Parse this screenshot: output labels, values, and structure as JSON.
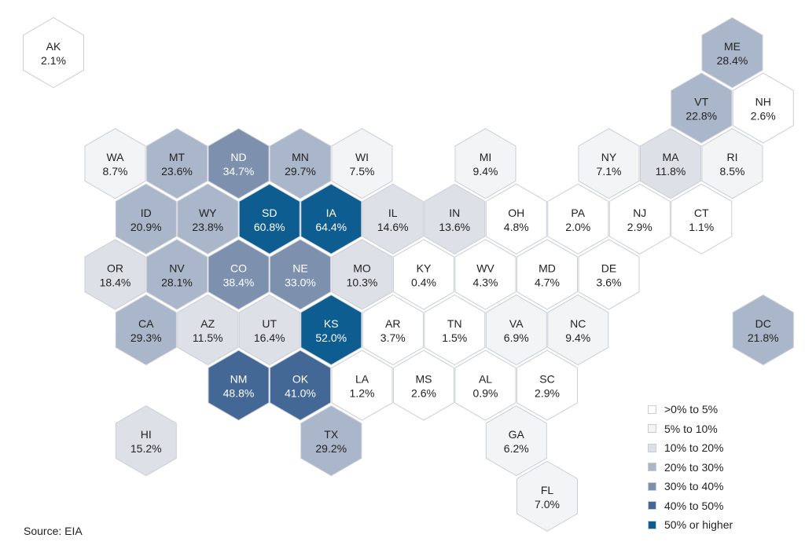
{
  "colors": {
    "0": "#ffffff",
    "1": "#f3f4f6",
    "2": "#dde1e7",
    "3": "#aab6c9",
    "4": "#7d91af",
    "5": "#446896",
    "6": "#0e5d90"
  },
  "legend": [
    {
      "label": ">0% to 5%",
      "bin": 0
    },
    {
      "label": "5% to 10%",
      "bin": 1
    },
    {
      "label": "10% to 20%",
      "bin": 2
    },
    {
      "label": "20% to 30%",
      "bin": 3
    },
    {
      "label": "30% to 40%",
      "bin": 4
    },
    {
      "label": "40% to 50%",
      "bin": 5
    },
    {
      "label": "50% or higher",
      "bin": 6
    }
  ],
  "source": "Source: EIA",
  "states": [
    {
      "abbr": "AK",
      "value": "2.1%",
      "bin": 0,
      "row": 0,
      "col": 0
    },
    {
      "abbr": "ME",
      "value": "28.4%",
      "bin": 3,
      "row": 0,
      "col": 11
    },
    {
      "abbr": "VT",
      "value": "22.8%",
      "bin": 3,
      "row": 1,
      "col": 10
    },
    {
      "abbr": "NH",
      "value": "2.6%",
      "bin": 0,
      "row": 1,
      "col": 11
    },
    {
      "abbr": "WA",
      "value": "8.7%",
      "bin": 1,
      "row": 2,
      "col": 1
    },
    {
      "abbr": "MT",
      "value": "23.6%",
      "bin": 3,
      "row": 2,
      "col": 2
    },
    {
      "abbr": "ND",
      "value": "34.7%",
      "bin": 4,
      "row": 2,
      "col": 3
    },
    {
      "abbr": "MN",
      "value": "29.7%",
      "bin": 3,
      "row": 2,
      "col": 4
    },
    {
      "abbr": "WI",
      "value": "7.5%",
      "bin": 1,
      "row": 2,
      "col": 5
    },
    {
      "abbr": "MI",
      "value": "9.4%",
      "bin": 1,
      "row": 2,
      "col": 7
    },
    {
      "abbr": "NY",
      "value": "7.1%",
      "bin": 1,
      "row": 2,
      "col": 9
    },
    {
      "abbr": "MA",
      "value": "11.8%",
      "bin": 2,
      "row": 2,
      "col": 10
    },
    {
      "abbr": "RI",
      "value": "8.5%",
      "bin": 1,
      "row": 2,
      "col": 11
    },
    {
      "abbr": "ID",
      "value": "20.9%",
      "bin": 3,
      "row": 3,
      "col": 1
    },
    {
      "abbr": "WY",
      "value": "23.8%",
      "bin": 3,
      "row": 3,
      "col": 2
    },
    {
      "abbr": "SD",
      "value": "60.8%",
      "bin": 6,
      "row": 3,
      "col": 3
    },
    {
      "abbr": "IA",
      "value": "64.4%",
      "bin": 6,
      "row": 3,
      "col": 4
    },
    {
      "abbr": "IL",
      "value": "14.6%",
      "bin": 2,
      "row": 3,
      "col": 5
    },
    {
      "abbr": "IN",
      "value": "13.6%",
      "bin": 2,
      "row": 3,
      "col": 6
    },
    {
      "abbr": "OH",
      "value": "4.8%",
      "bin": 0,
      "row": 3,
      "col": 7
    },
    {
      "abbr": "PA",
      "value": "2.0%",
      "bin": 0,
      "row": 3,
      "col": 8
    },
    {
      "abbr": "NJ",
      "value": "2.9%",
      "bin": 0,
      "row": 3,
      "col": 9
    },
    {
      "abbr": "CT",
      "value": "1.1%",
      "bin": 0,
      "row": 3,
      "col": 10
    },
    {
      "abbr": "OR",
      "value": "18.4%",
      "bin": 2,
      "row": 4,
      "col": 1
    },
    {
      "abbr": "NV",
      "value": "28.1%",
      "bin": 3,
      "row": 4,
      "col": 2
    },
    {
      "abbr": "CO",
      "value": "38.4%",
      "bin": 4,
      "row": 4,
      "col": 3
    },
    {
      "abbr": "NE",
      "value": "33.0%",
      "bin": 4,
      "row": 4,
      "col": 4
    },
    {
      "abbr": "MO",
      "value": "10.3%",
      "bin": 2,
      "row": 4,
      "col": 5
    },
    {
      "abbr": "KY",
      "value": "0.4%",
      "bin": 0,
      "row": 4,
      "col": 6
    },
    {
      "abbr": "WV",
      "value": "4.3%",
      "bin": 0,
      "row": 4,
      "col": 7
    },
    {
      "abbr": "MD",
      "value": "4.7%",
      "bin": 0,
      "row": 4,
      "col": 8
    },
    {
      "abbr": "DE",
      "value": "3.6%",
      "bin": 0,
      "row": 4,
      "col": 9
    },
    {
      "abbr": "CA",
      "value": "29.3%",
      "bin": 3,
      "row": 5,
      "col": 1
    },
    {
      "abbr": "AZ",
      "value": "11.5%",
      "bin": 2,
      "row": 5,
      "col": 2
    },
    {
      "abbr": "UT",
      "value": "16.4%",
      "bin": 2,
      "row": 5,
      "col": 3
    },
    {
      "abbr": "KS",
      "value": "52.0%",
      "bin": 6,
      "row": 5,
      "col": 4
    },
    {
      "abbr": "AR",
      "value": "3.7%",
      "bin": 0,
      "row": 5,
      "col": 5
    },
    {
      "abbr": "TN",
      "value": "1.5%",
      "bin": 0,
      "row": 5,
      "col": 6
    },
    {
      "abbr": "VA",
      "value": "6.9%",
      "bin": 1,
      "row": 5,
      "col": 7
    },
    {
      "abbr": "NC",
      "value": "9.4%",
      "bin": 1,
      "row": 5,
      "col": 8
    },
    {
      "abbr": "DC",
      "value": "21.8%",
      "bin": 3,
      "row": 5,
      "col": 11
    },
    {
      "abbr": "NM",
      "value": "48.8%",
      "bin": 5,
      "row": 6,
      "col": 3
    },
    {
      "abbr": "OK",
      "value": "41.0%",
      "bin": 5,
      "row": 6,
      "col": 4
    },
    {
      "abbr": "LA",
      "value": "1.2%",
      "bin": 0,
      "row": 6,
      "col": 5
    },
    {
      "abbr": "MS",
      "value": "2.6%",
      "bin": 0,
      "row": 6,
      "col": 6
    },
    {
      "abbr": "AL",
      "value": "0.9%",
      "bin": 0,
      "row": 6,
      "col": 7
    },
    {
      "abbr": "SC",
      "value": "2.9%",
      "bin": 0,
      "row": 6,
      "col": 8
    },
    {
      "abbr": "HI",
      "value": "15.2%",
      "bin": 2,
      "row": 7,
      "col": 1
    },
    {
      "abbr": "TX",
      "value": "29.2%",
      "bin": 3,
      "row": 7,
      "col": 4
    },
    {
      "abbr": "GA",
      "value": "6.2%",
      "bin": 1,
      "row": 7,
      "col": 7
    },
    {
      "abbr": "FL",
      "value": "7.0%",
      "bin": 1,
      "row": 8,
      "col": 8
    }
  ]
}
